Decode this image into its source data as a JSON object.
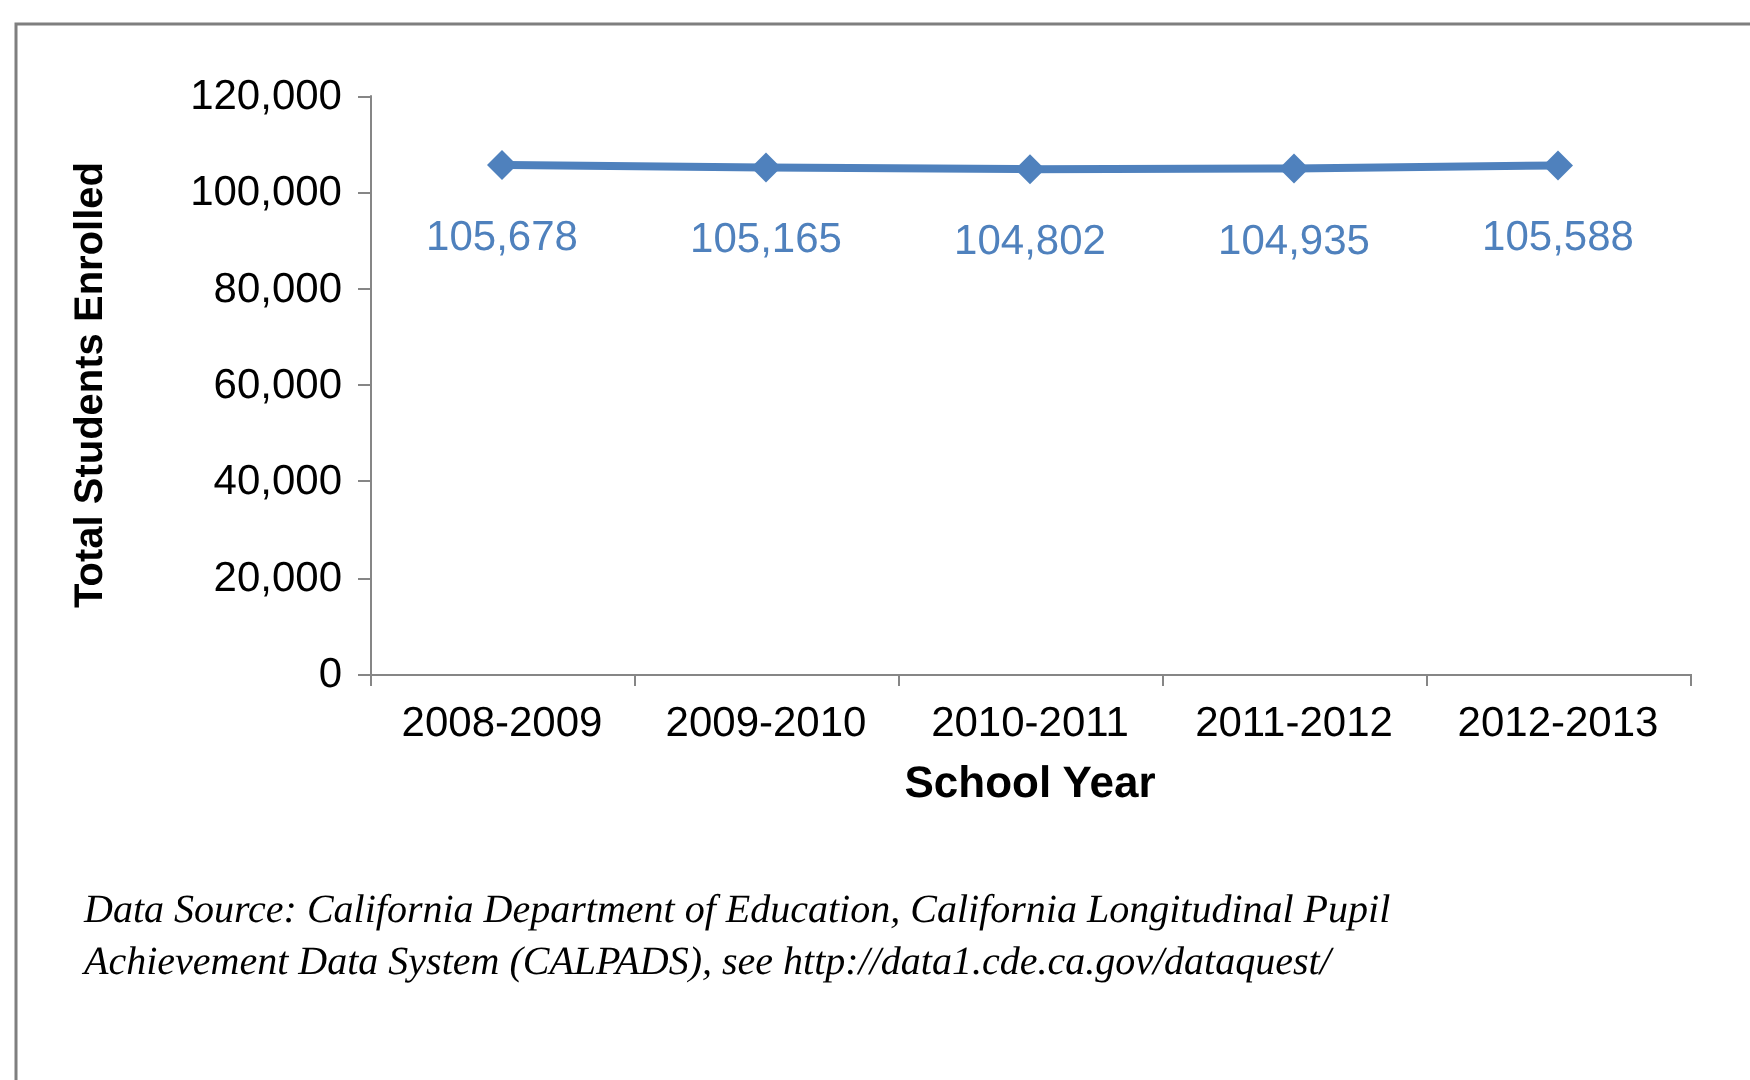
{
  "chart_data": {
    "type": "line",
    "xlabel": "School Year",
    "ylabel": "Total Students Enrolled",
    "categories": [
      "2008-2009",
      "2009-2010",
      "2010-2011",
      "2011-2012",
      "2012-2013"
    ],
    "series": [
      {
        "color": "#4f81bd",
        "values": [
          105678,
          105165,
          104802,
          104935,
          105588
        ],
        "value_labels": [
          "105,678",
          "105,165",
          "104,802",
          "104,935",
          "105,588"
        ]
      }
    ],
    "ylim": [
      0,
      120000
    ],
    "yticks": [
      0,
      {
        "value": 20000,
        "label": "20,000"
      },
      {
        "value": 40000,
        "label": "40,000"
      },
      {
        "value": 60000,
        "label": "60,000"
      },
      {
        "value": 80000,
        "label": "80,000"
      },
      {
        "value": 100000,
        "label": "100,000"
      },
      {
        "value": 120000,
        "label": "120,000"
      }
    ],
    "grid": false,
    "marker": "diamond",
    "line_style": "solid",
    "annotations": [
      "Data Source: California Department of Education, California Longitudinal Pupil Achievement Data System (CALPADS), see http://data1.cde.ca.gov/dataquest/"
    ]
  }
}
